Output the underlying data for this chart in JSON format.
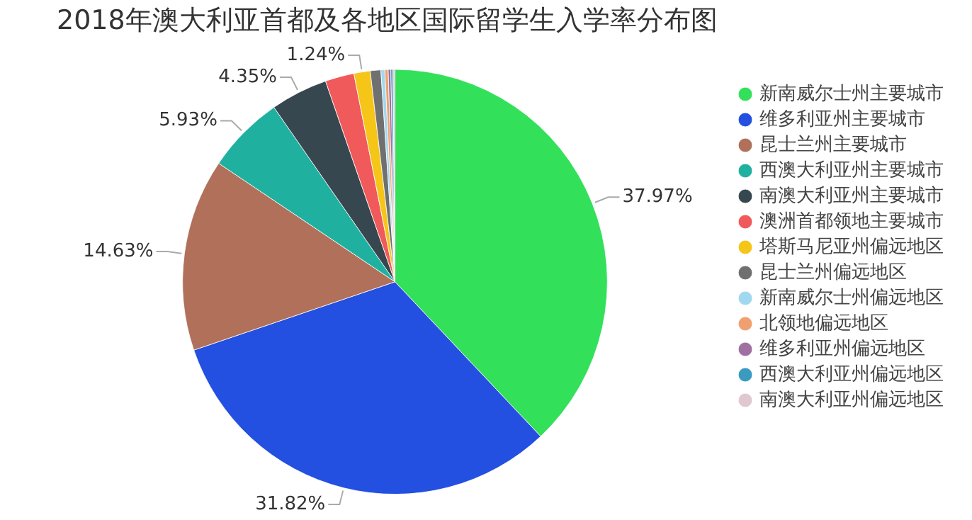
{
  "chart_data": {
    "type": "pie",
    "title": "2018年澳大利亚首都及各地区国际留学生入学率分布图",
    "categories": [
      "新南威尔士州主要城市",
      "维多利亚州主要城市",
      "昆士兰州主要城市",
      "西澳大利亚州主要城市",
      "南澳大利亚州主要城市",
      "澳洲首都领地主要城市",
      "塔斯马尼亚州偏远地区",
      "昆士兰州偏远地区",
      "新南威尔士州偏远地区",
      "北领地偏远地区",
      "维多利亚州偏远地区",
      "西澳大利亚州偏远地区",
      "南澳大利亚州偏远地区"
    ],
    "values": [
      37.97,
      31.82,
      14.63,
      5.93,
      4.35,
      2.2,
      1.24,
      0.8,
      0.3,
      0.25,
      0.2,
      0.16,
      0.15
    ],
    "value_labels": [
      "37.97%",
      "31.82%",
      "14.63%",
      "5.93%",
      "4.35%",
      null,
      "1.24%",
      null,
      null,
      null,
      null,
      null,
      null
    ],
    "colors": [
      "#33e05a",
      "#2350e0",
      "#b0705a",
      "#20b0a0",
      "#37474f",
      "#f05a5a",
      "#f5c518",
      "#707070",
      "#a0d8ef",
      "#f0a070",
      "#a070a0",
      "#3a9ac0",
      "#e0c8d0"
    ],
    "legend": "right"
  }
}
